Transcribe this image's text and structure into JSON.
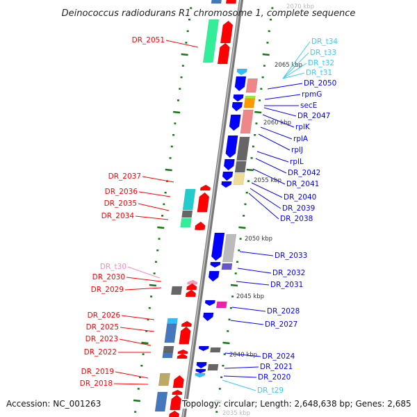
{
  "title": "Deinococcus radiodurans R1 chromosome 1, complete sequence",
  "footer": {
    "accession": "Accession: NC_001263",
    "summary": "Topology: circular; Length: 2,648,638 bp; Genes: 2,685"
  },
  "colors": {
    "forward": "#ff0000",
    "reverse": "#0000ff",
    "trna": "#33ccff",
    "pseudo_trna": "#ff88bb",
    "backbone": "#8a8a8a",
    "tick": "#117711"
  },
  "ticks": [
    "2070 kbp",
    "2065 kbp",
    "2060 kbp",
    "2055 kbp",
    "2050 kbp",
    "2045 kbp",
    "2040 kbp",
    "2035 kbp"
  ],
  "left_labels": [
    "DR_2051",
    "DR_2037",
    "DR_2036",
    "DR_2035",
    "DR_2034",
    "DR_t30",
    "DR_2030",
    "DR_2029",
    "DR_2026",
    "DR_2025",
    "DR_2023",
    "DR_2022",
    "DR_2019",
    "DR_2018"
  ],
  "right_labels": [
    "DR_t34",
    "DR_t33",
    "DR_t32",
    "DR_t31",
    "DR_2050",
    "rpmG",
    "secE",
    "DR_2047",
    "rplK",
    "rplA",
    "rplJ",
    "rplL",
    "DR_2042",
    "DR_2041",
    "DR_2040",
    "DR_2039",
    "DR_2038",
    "DR_2033",
    "DR_2032",
    "DR_2031",
    "DR_2028",
    "DR_2027",
    "DR_2024",
    "DR_2021",
    "DR_2020",
    "DR_t29"
  ]
}
